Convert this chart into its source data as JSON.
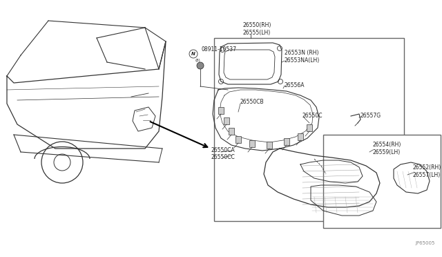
{
  "bg_color": "#ffffff",
  "line_color": "#333333",
  "text_color": "#222222",
  "label_fontsize": 5.5,
  "labels": {
    "top_label": "26550(RH)\n26555(LH)",
    "bolt_label": "08911-10537",
    "gasket_label": "26553N (RH)\n26553NA(LH)",
    "wire_label": "26556A",
    "bulb1_label": "26550CB",
    "bulb2_label": "26550C",
    "socket1_label": "26550CA",
    "socket2_label": "26550CC",
    "inner_label": "26554(RH)\n26559(LH)",
    "outer_label": "26552(RH)\n26557(LH)",
    "clip_label": "26557G",
    "footer": "JP65005"
  }
}
